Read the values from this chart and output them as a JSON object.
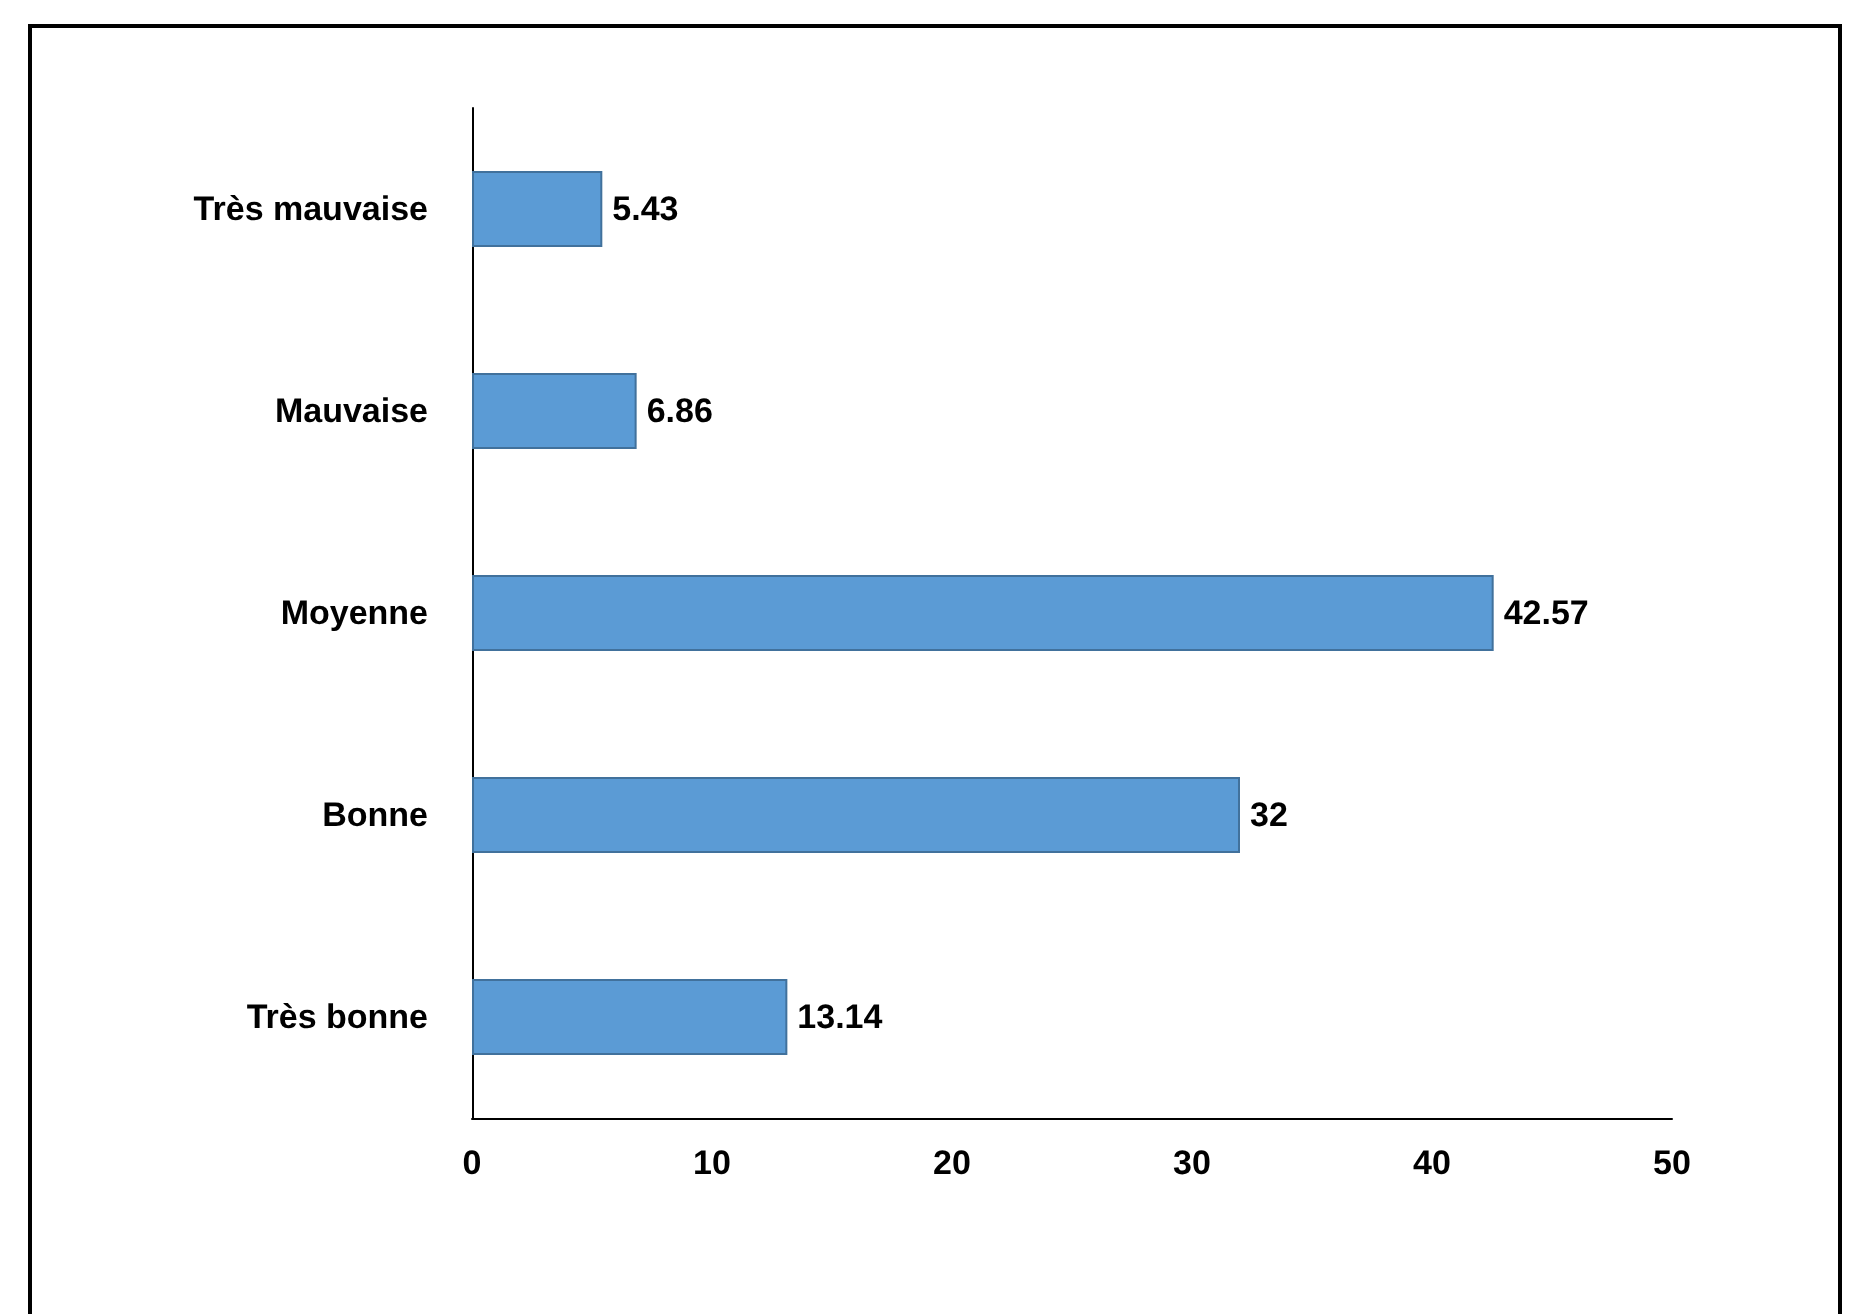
{
  "chart_data": {
    "type": "bar",
    "orientation": "horizontal",
    "categories": [
      "Très mauvaise",
      "Mauvaise",
      "Moyenne",
      "Bonne",
      "Très bonne"
    ],
    "values": [
      5.43,
      6.86,
      42.57,
      32,
      13.14
    ],
    "color": "#5b9bd5",
    "xlim": [
      0,
      50
    ],
    "xticks": [
      0,
      10,
      20,
      30,
      40,
      50
    ],
    "data_labels": true,
    "grid": false
  }
}
